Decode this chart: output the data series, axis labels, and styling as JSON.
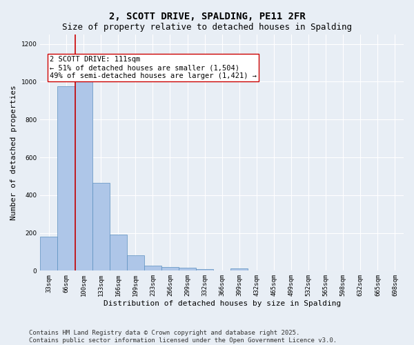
{
  "title": "2, SCOTT DRIVE, SPALDING, PE11 2FR",
  "subtitle": "Size of property relative to detached houses in Spalding",
  "xlabel": "Distribution of detached houses by size in Spalding",
  "ylabel": "Number of detached properties",
  "categories": [
    "33sqm",
    "66sqm",
    "100sqm",
    "133sqm",
    "166sqm",
    "199sqm",
    "233sqm",
    "266sqm",
    "299sqm",
    "332sqm",
    "366sqm",
    "399sqm",
    "432sqm",
    "465sqm",
    "499sqm",
    "532sqm",
    "565sqm",
    "598sqm",
    "632sqm",
    "665sqm",
    "698sqm"
  ],
  "values": [
    180,
    975,
    1010,
    465,
    192,
    80,
    25,
    18,
    15,
    8,
    0,
    12,
    0,
    0,
    0,
    0,
    0,
    0,
    0,
    0,
    0
  ],
  "bar_color": "#aec6e8",
  "bar_edge_color": "#5a8fc0",
  "vline_color": "#cc0000",
  "annotation_text": "2 SCOTT DRIVE: 111sqm\n← 51% of detached houses are smaller (1,504)\n49% of semi-detached houses are larger (1,421) →",
  "annotation_box_color": "#ffffff",
  "annotation_box_edge": "#cc0000",
  "ylim": [
    0,
    1250
  ],
  "yticks": [
    0,
    200,
    400,
    600,
    800,
    1000,
    1200
  ],
  "background_color": "#e8eef5",
  "grid_color": "#ffffff",
  "footer": "Contains HM Land Registry data © Crown copyright and database right 2025.\nContains public sector information licensed under the Open Government Licence v3.0.",
  "title_fontsize": 10,
  "subtitle_fontsize": 9,
  "xlabel_fontsize": 8,
  "ylabel_fontsize": 8,
  "tick_fontsize": 6.5,
  "annotation_fontsize": 7.5,
  "footer_fontsize": 6.5
}
